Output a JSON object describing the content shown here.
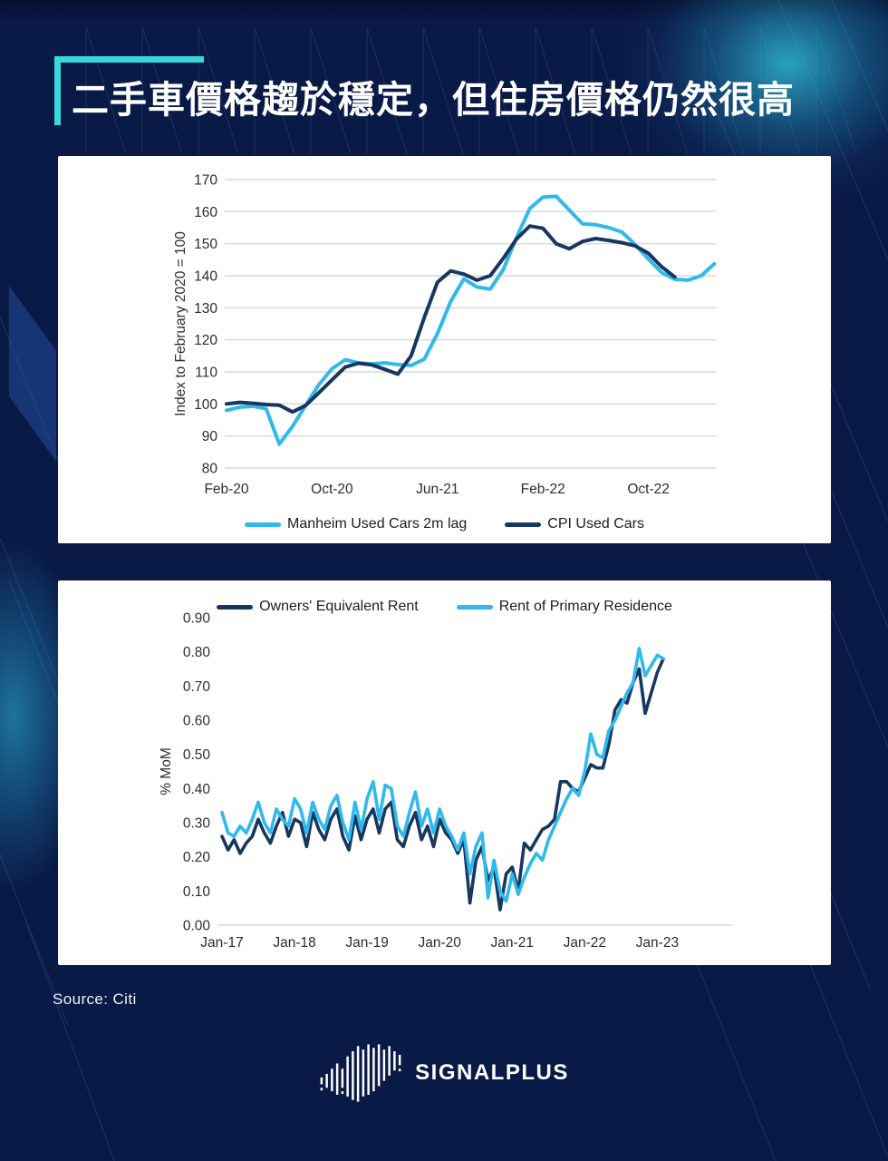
{
  "page": {
    "title": "二手車價格趨於穩定，但住房價格仍然很高",
    "source": "Source: Citi",
    "brand": "SIGNALPLUS",
    "colors": {
      "background": "#0A1A47",
      "accent_cyan": "#35D8DF",
      "line_cyan": "#2FB9EC",
      "line_navy": "#17375F",
      "panel": "#FFFFFF",
      "gridline": "#D9D9D9"
    }
  },
  "chart_data": [
    {
      "type": "line",
      "title": "",
      "xlabel": "",
      "ylabel": "Index to February 2020 = 100",
      "ylim": [
        80,
        170
      ],
      "grid": "horizontal",
      "legend_position": "bottom",
      "yticks": [
        {
          "label": "170",
          "value": 170
        },
        {
          "label": "160",
          "value": 160
        },
        {
          "label": "150",
          "value": 150
        },
        {
          "label": "140",
          "value": 140
        },
        {
          "label": "130",
          "value": 130
        },
        {
          "label": "120",
          "value": 120
        },
        {
          "label": "110",
          "value": 110
        },
        {
          "label": "100",
          "value": 100
        },
        {
          "label": "90",
          "value": 90
        },
        {
          "label": "80",
          "value": 80
        }
      ],
      "xticks": [
        {
          "label": "Feb-20",
          "index": 0
        },
        {
          "label": "Oct-20",
          "index": 8
        },
        {
          "label": "Jun-21",
          "index": 16
        },
        {
          "label": "Feb-22",
          "index": 24
        },
        {
          "label": "Oct-22",
          "index": 32
        }
      ],
      "categories": [
        "Feb-20",
        "Mar-20",
        "Apr-20",
        "May-20",
        "Jun-20",
        "Jul-20",
        "Aug-20",
        "Sep-20",
        "Oct-20",
        "Nov-20",
        "Dec-20",
        "Jan-21",
        "Feb-21",
        "Mar-21",
        "Apr-21",
        "May-21",
        "Jun-21",
        "Jul-21",
        "Aug-21",
        "Sep-21",
        "Oct-21",
        "Nov-21",
        "Dec-21",
        "Jan-22",
        "Feb-22",
        "Mar-22",
        "Apr-22",
        "May-22",
        "Jun-22",
        "Jul-22",
        "Aug-22",
        "Sep-22",
        "Oct-22",
        "Nov-22",
        "Dec-22",
        "Jan-23",
        "Feb-23",
        "Mar-23"
      ],
      "series": [
        {
          "name": "Manheim Used Cars 2m lag",
          "color": "#2FB9EC",
          "values": [
            98,
            99,
            99.3,
            98.5,
            87.5,
            93,
            99.5,
            106,
            111,
            113.8,
            112.8,
            112.5,
            112.8,
            112.3,
            112,
            114,
            122,
            132,
            139,
            136.5,
            135.8,
            142,
            152,
            161,
            164.5,
            164.8,
            160.5,
            156.2,
            155.9,
            155,
            153.6,
            149.7,
            145.2,
            141,
            138.9,
            138.6,
            140,
            143.7
          ]
        },
        {
          "name": "CPI Used Cars",
          "color": "#17375F",
          "values": [
            100,
            100.5,
            100.2,
            99.8,
            99.6,
            97.5,
            99.5,
            103.5,
            107.5,
            111.5,
            112.7,
            112.2,
            110.8,
            109.3,
            115,
            127,
            138,
            141.5,
            140.5,
            138.6,
            140,
            145.5,
            151.5,
            155.5,
            154.8,
            150,
            148.4,
            150.7,
            151.6,
            151,
            150.3,
            149.3,
            147,
            142.8,
            139.6
          ]
        }
      ]
    },
    {
      "type": "line",
      "title": "",
      "xlabel": "",
      "ylabel": "% MoM",
      "ylim": [
        0,
        0.9
      ],
      "grid": "baseline-only",
      "legend_position": "top",
      "yticks": [
        {
          "label": "0.90",
          "value": 0.9
        },
        {
          "label": "0.80",
          "value": 0.8
        },
        {
          "label": "0.70",
          "value": 0.7
        },
        {
          "label": "0.60",
          "value": 0.6
        },
        {
          "label": "0.50",
          "value": 0.5
        },
        {
          "label": "0.40",
          "value": 0.4
        },
        {
          "label": "0.30",
          "value": 0.3
        },
        {
          "label": "0.20",
          "value": 0.2
        },
        {
          "label": "0.10",
          "value": 0.1
        },
        {
          "label": "0.00",
          "value": 0
        }
      ],
      "xticks": [
        {
          "label": "Jan-17",
          "index": 0
        },
        {
          "label": "Jan-18",
          "index": 12
        },
        {
          "label": "Jan-19",
          "index": 24
        },
        {
          "label": "Jan-20",
          "index": 36
        },
        {
          "label": "Jan-21",
          "index": 48
        },
        {
          "label": "Jan-22",
          "index": 60
        },
        {
          "label": "Jan-23",
          "index": 72
        }
      ],
      "categories": [
        "Jan-17",
        "Feb-17",
        "Mar-17",
        "Apr-17",
        "May-17",
        "Jun-17",
        "Jul-17",
        "Aug-17",
        "Sep-17",
        "Oct-17",
        "Nov-17",
        "Dec-17",
        "Jan-18",
        "Feb-18",
        "Mar-18",
        "Apr-18",
        "May-18",
        "Jun-18",
        "Jul-18",
        "Aug-18",
        "Sep-18",
        "Oct-18",
        "Nov-18",
        "Dec-18",
        "Jan-19",
        "Feb-19",
        "Mar-19",
        "Apr-19",
        "May-19",
        "Jun-19",
        "Jul-19",
        "Aug-19",
        "Sep-19",
        "Oct-19",
        "Nov-19",
        "Dec-19",
        "Jan-20",
        "Feb-20",
        "Mar-20",
        "Apr-20",
        "May-20",
        "Jun-20",
        "Jul-20",
        "Aug-20",
        "Sep-20",
        "Oct-20",
        "Nov-20",
        "Dec-20",
        "Jan-21",
        "Feb-21",
        "Mar-21",
        "Apr-21",
        "May-21",
        "Jun-21",
        "Jul-21",
        "Aug-21",
        "Sep-21",
        "Oct-21",
        "Nov-21",
        "Dec-21",
        "Jan-22",
        "Feb-22",
        "Mar-22",
        "Apr-22",
        "May-22",
        "Jun-22",
        "Jul-22",
        "Aug-22",
        "Sep-22",
        "Oct-22",
        "Nov-22",
        "Dec-22",
        "Jan-23",
        "Feb-23"
      ],
      "series": [
        {
          "name": "Owners' Equivalent Rent",
          "color": "#17375F",
          "values": [
            0.26,
            0.22,
            0.25,
            0.21,
            0.24,
            0.26,
            0.31,
            0.27,
            0.24,
            0.29,
            0.33,
            0.26,
            0.31,
            0.3,
            0.23,
            0.33,
            0.28,
            0.25,
            0.31,
            0.34,
            0.26,
            0.22,
            0.32,
            0.25,
            0.31,
            0.34,
            0.27,
            0.34,
            0.36,
            0.25,
            0.23,
            0.29,
            0.33,
            0.25,
            0.29,
            0.23,
            0.31,
            0.27,
            0.25,
            0.21,
            0.25,
            0.065,
            0.19,
            0.23,
            0.13,
            0.17,
            0.045,
            0.15,
            0.17,
            0.1,
            0.24,
            0.22,
            0.25,
            0.28,
            0.29,
            0.31,
            0.42,
            0.42,
            0.4,
            0.39,
            0.43,
            0.47,
            0.46,
            0.46,
            0.53,
            0.63,
            0.66,
            0.65,
            0.71,
            0.75,
            0.62,
            0.68,
            0.74,
            0.78
          ]
        },
        {
          "name": "Rent of Primary Residence",
          "color": "#2FB9EC",
          "values": [
            0.33,
            0.27,
            0.26,
            0.29,
            0.27,
            0.31,
            0.36,
            0.3,
            0.27,
            0.34,
            0.31,
            0.29,
            0.37,
            0.34,
            0.27,
            0.36,
            0.31,
            0.28,
            0.35,
            0.38,
            0.3,
            0.25,
            0.36,
            0.28,
            0.37,
            0.42,
            0.31,
            0.41,
            0.4,
            0.29,
            0.26,
            0.33,
            0.39,
            0.29,
            0.34,
            0.27,
            0.34,
            0.29,
            0.26,
            0.22,
            0.27,
            0.15,
            0.23,
            0.27,
            0.08,
            0.19,
            0.1,
            0.07,
            0.15,
            0.09,
            0.14,
            0.18,
            0.21,
            0.19,
            0.25,
            0.29,
            0.33,
            0.37,
            0.4,
            0.38,
            0.45,
            0.56,
            0.5,
            0.49,
            0.57,
            0.6,
            0.64,
            0.68,
            0.71,
            0.81,
            0.73,
            0.76,
            0.79,
            0.78
          ]
        }
      ]
    }
  ]
}
